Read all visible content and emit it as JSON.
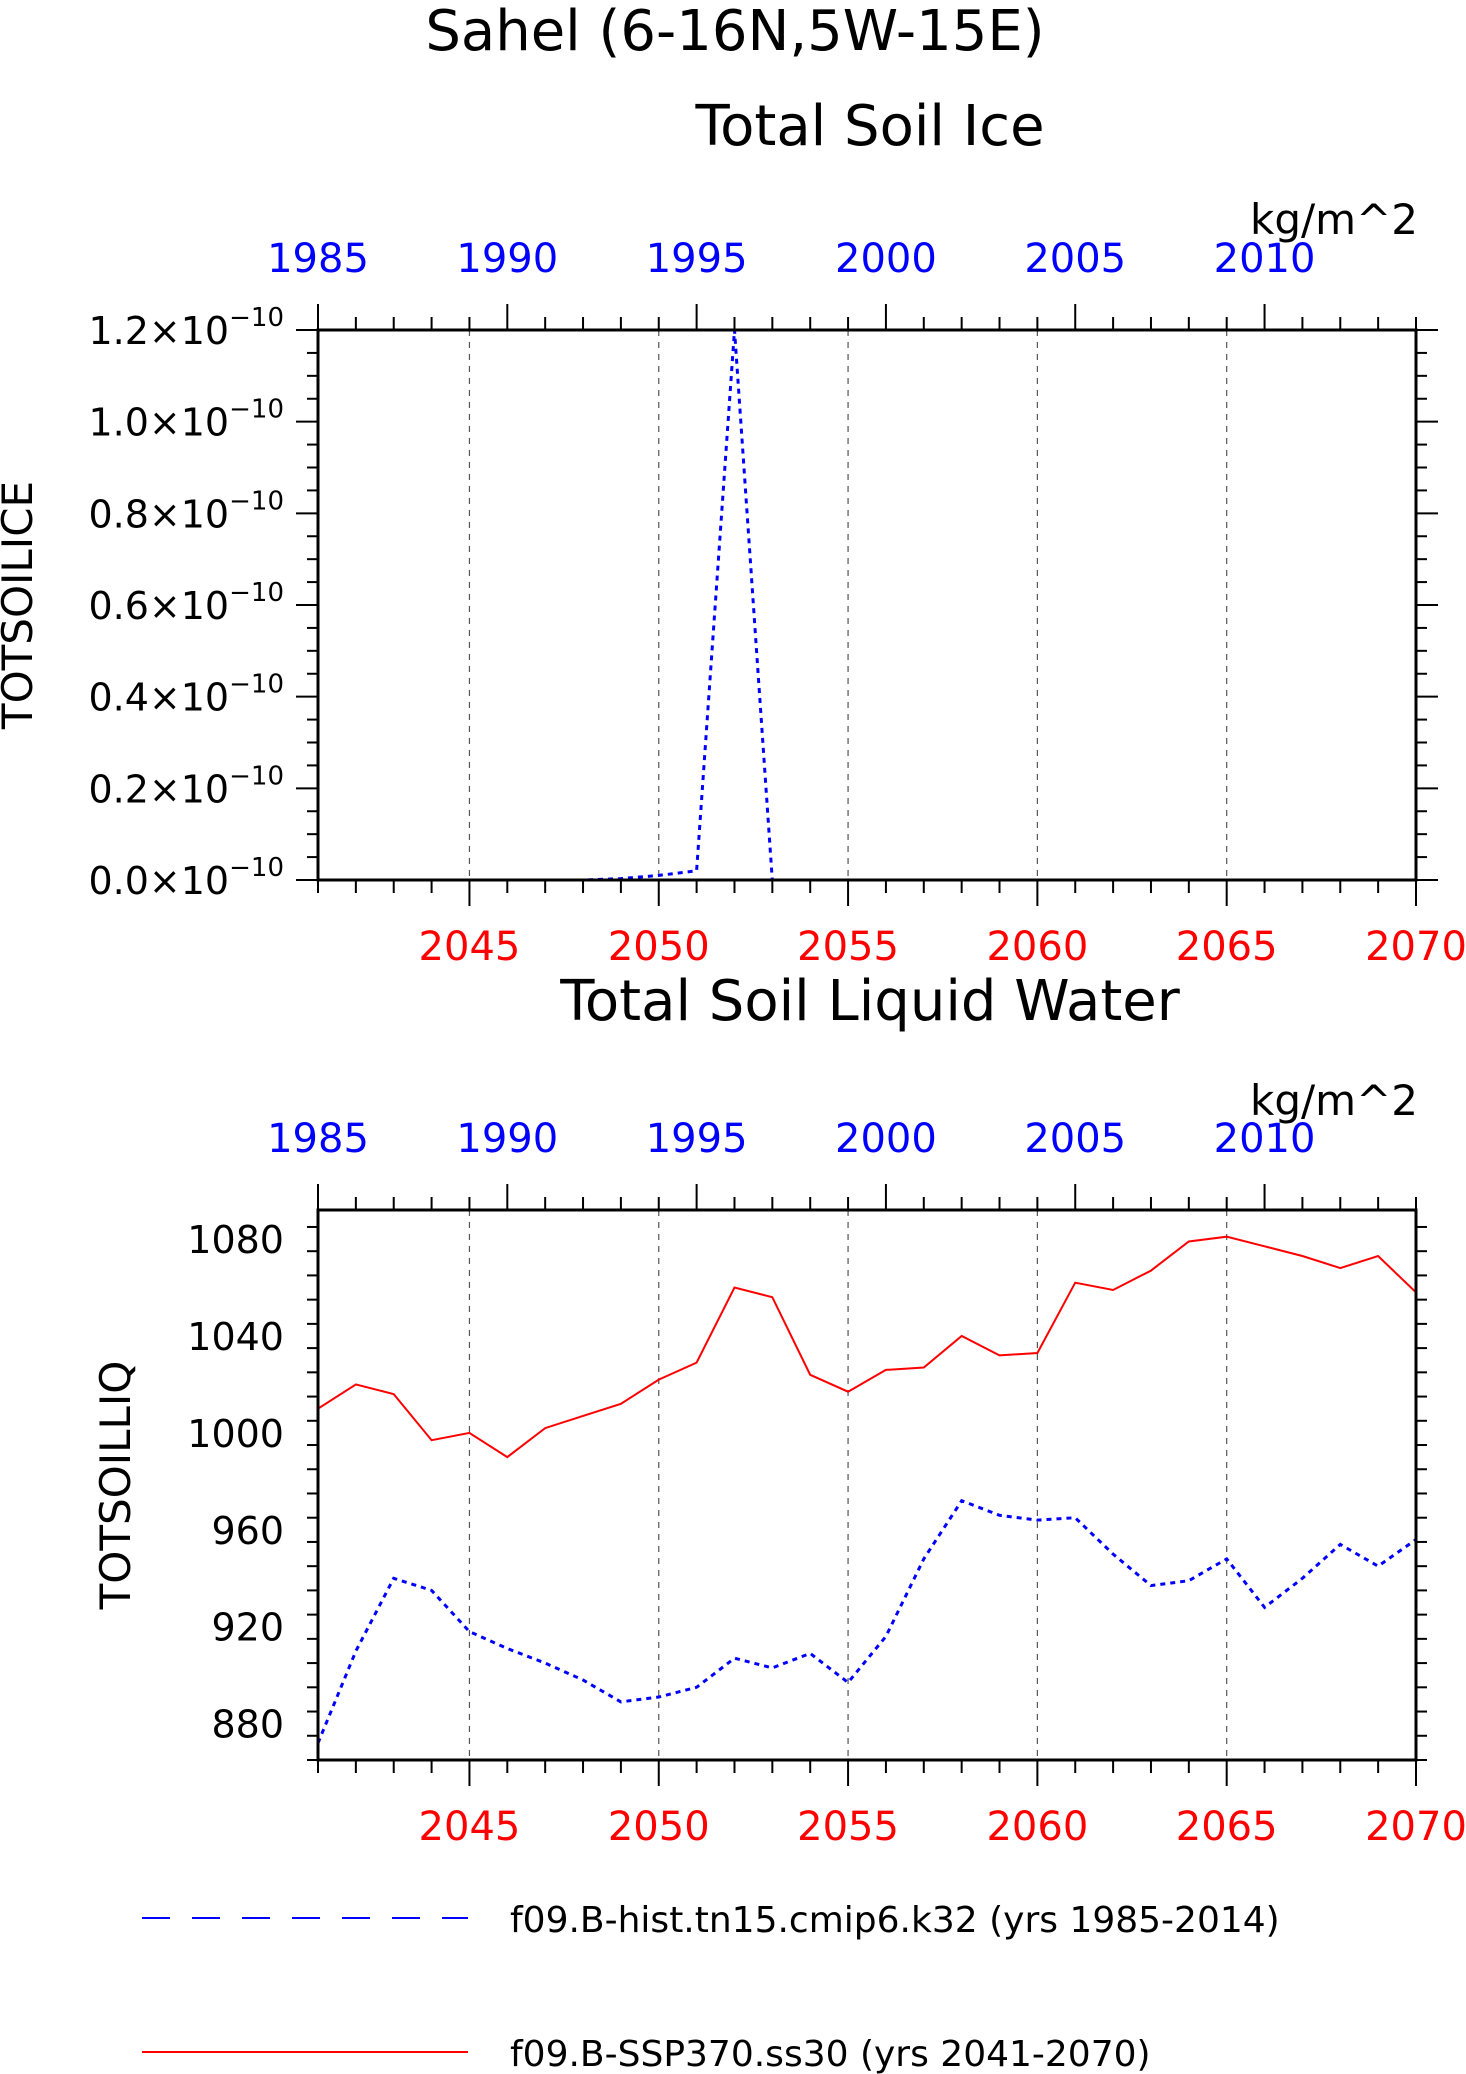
{
  "figure": {
    "title_line1": "Sahel (6-16N,5W-15E)",
    "colors": {
      "hist": "#0000ff",
      "ssp": "#ff0000",
      "axis": "#000000",
      "grid": "#555555"
    }
  },
  "legend": {
    "entries": [
      {
        "label": "f09.B-hist.tn15.cmip6.k32 (yrs 1985-2014)",
        "color": "#0000ff",
        "style": "dashed"
      },
      {
        "label": "f09.B-SSP370.ss30 (yrs 2041-2070)",
        "color": "#ff0000",
        "style": "solid"
      }
    ]
  },
  "chart_data": [
    {
      "type": "line",
      "title": "Total Soil Ice",
      "units": "kg/m^2",
      "ylabel": "TOTSOILICE",
      "ylim": [
        0,
        1.2e-10
      ],
      "yticks": [
        0,
        2e-11,
        4e-11,
        6e-11,
        8e-11,
        1e-10,
        1.2e-10
      ],
      "ytick_labels": [
        "0.0",
        "0.2",
        "0.4",
        "0.6",
        "0.8",
        "1.0",
        "1.2"
      ],
      "ytick_base": "×10",
      "ytick_exponent": "−10",
      "x_bottom": {
        "range": [
          2041,
          2070
        ],
        "ticks": [
          2045,
          2050,
          2055,
          2060,
          2065,
          2070
        ],
        "color": "#ff0000"
      },
      "x_top": {
        "range": [
          1985,
          2014
        ],
        "ticks": [
          1985,
          1990,
          1995,
          2000,
          2005,
          2010
        ],
        "color": "#0000ff"
      },
      "grid": "vertical-dashed",
      "series": [
        {
          "x": [
            1985,
            1986,
            1987,
            1988,
            1989,
            1990,
            1991,
            1992,
            1993,
            1994,
            1995,
            1996,
            1997,
            1998,
            1999,
            2000,
            2001,
            2002,
            2003,
            2004,
            2005,
            2006,
            2007,
            2008,
            2009,
            2010,
            2011,
            2012,
            2013,
            2014
          ],
          "y": [
            0,
            0,
            0,
            0,
            0,
            0,
            0,
            0,
            3e-13,
            1e-12,
            2e-12,
            1.2e-10,
            0,
            0,
            0,
            0,
            0,
            0,
            0,
            0,
            0,
            0,
            0,
            0,
            0,
            0,
            0,
            0,
            0,
            0
          ],
          "axis": "top",
          "color": "#0000ff",
          "style": "dashed"
        }
      ]
    },
    {
      "type": "line",
      "title": "Total Soil Liquid Water",
      "units": "kg/m^2",
      "ylabel": "TOTSOILLIQ",
      "ylim": [
        865,
        1092
      ],
      "yticks": [
        880,
        920,
        960,
        1000,
        1040,
        1080
      ],
      "ytick_labels": [
        "880",
        "920",
        "960",
        "1000",
        "1040",
        "1080"
      ],
      "x_bottom": {
        "range": [
          2041,
          2070
        ],
        "ticks": [
          2045,
          2050,
          2055,
          2060,
          2065,
          2070
        ],
        "color": "#ff0000"
      },
      "x_top": {
        "range": [
          1985,
          2014
        ],
        "ticks": [
          1985,
          1990,
          1995,
          2000,
          2005,
          2010
        ],
        "color": "#0000ff"
      },
      "grid": "vertical-dashed",
      "series": [
        {
          "x": [
            2041,
            2042,
            2043,
            2044,
            2045,
            2046,
            2047,
            2048,
            2049,
            2050,
            2051,
            2052,
            2053,
            2054,
            2055,
            2056,
            2057,
            2058,
            2059,
            2060,
            2061,
            2062,
            2063,
            2064,
            2065,
            2066,
            2067,
            2068,
            2069,
            2070
          ],
          "y": [
            1010,
            1020,
            1016,
            997,
            1000,
            990,
            1002,
            1007,
            1012,
            1022,
            1029,
            1060,
            1056,
            1024,
            1017,
            1026,
            1027,
            1040,
            1032,
            1033,
            1062,
            1059,
            1067,
            1079,
            1081,
            1077,
            1073,
            1068,
            1073,
            1058
          ],
          "axis": "bottom",
          "color": "#ff0000",
          "style": "solid"
        },
        {
          "x": [
            1985,
            1986,
            1987,
            1988,
            1989,
            1990,
            1991,
            1992,
            1993,
            1994,
            1995,
            1996,
            1997,
            1998,
            1999,
            2000,
            2001,
            2002,
            2003,
            2004,
            2005,
            2006,
            2007,
            2008,
            2009,
            2010,
            2011,
            2012,
            2013,
            2014
          ],
          "y": [
            872,
            910,
            940,
            935,
            918,
            911,
            905,
            898,
            889,
            891,
            895,
            907,
            903,
            909,
            897,
            916,
            948,
            972,
            966,
            964,
            965,
            950,
            937,
            939,
            948,
            928,
            940,
            954,
            945,
            956
          ],
          "axis": "top",
          "color": "#0000ff",
          "style": "dashed"
        }
      ]
    }
  ]
}
